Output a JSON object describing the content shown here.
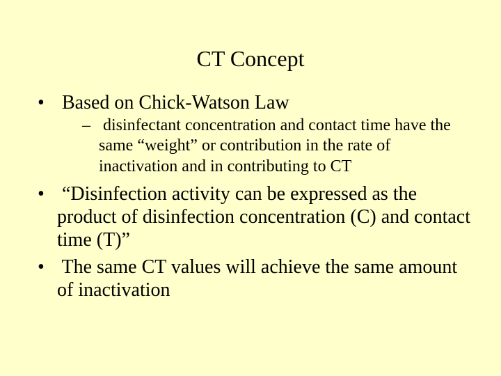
{
  "background_color": "#ffffcc",
  "text_color": "#000000",
  "font_family": "Times New Roman",
  "title": {
    "text": "CT Concept",
    "fontsize": 32,
    "align": "center"
  },
  "bullets": [
    {
      "text": "Based on Chick-Watson Law",
      "fontsize": 28,
      "sub": [
        {
          "text": "disinfectant concentration and contact time have the same “weight” or contribution in the rate of inactivation and in contributing to CT",
          "fontsize": 24
        }
      ]
    },
    {
      "text": "“Disinfection activity can be expressed as the product of disinfection concentration (C) and contact time (T)”",
      "fontsize": 28
    },
    {
      "text": "The same CT values will achieve the same amount of inactivation",
      "fontsize": 28
    }
  ]
}
